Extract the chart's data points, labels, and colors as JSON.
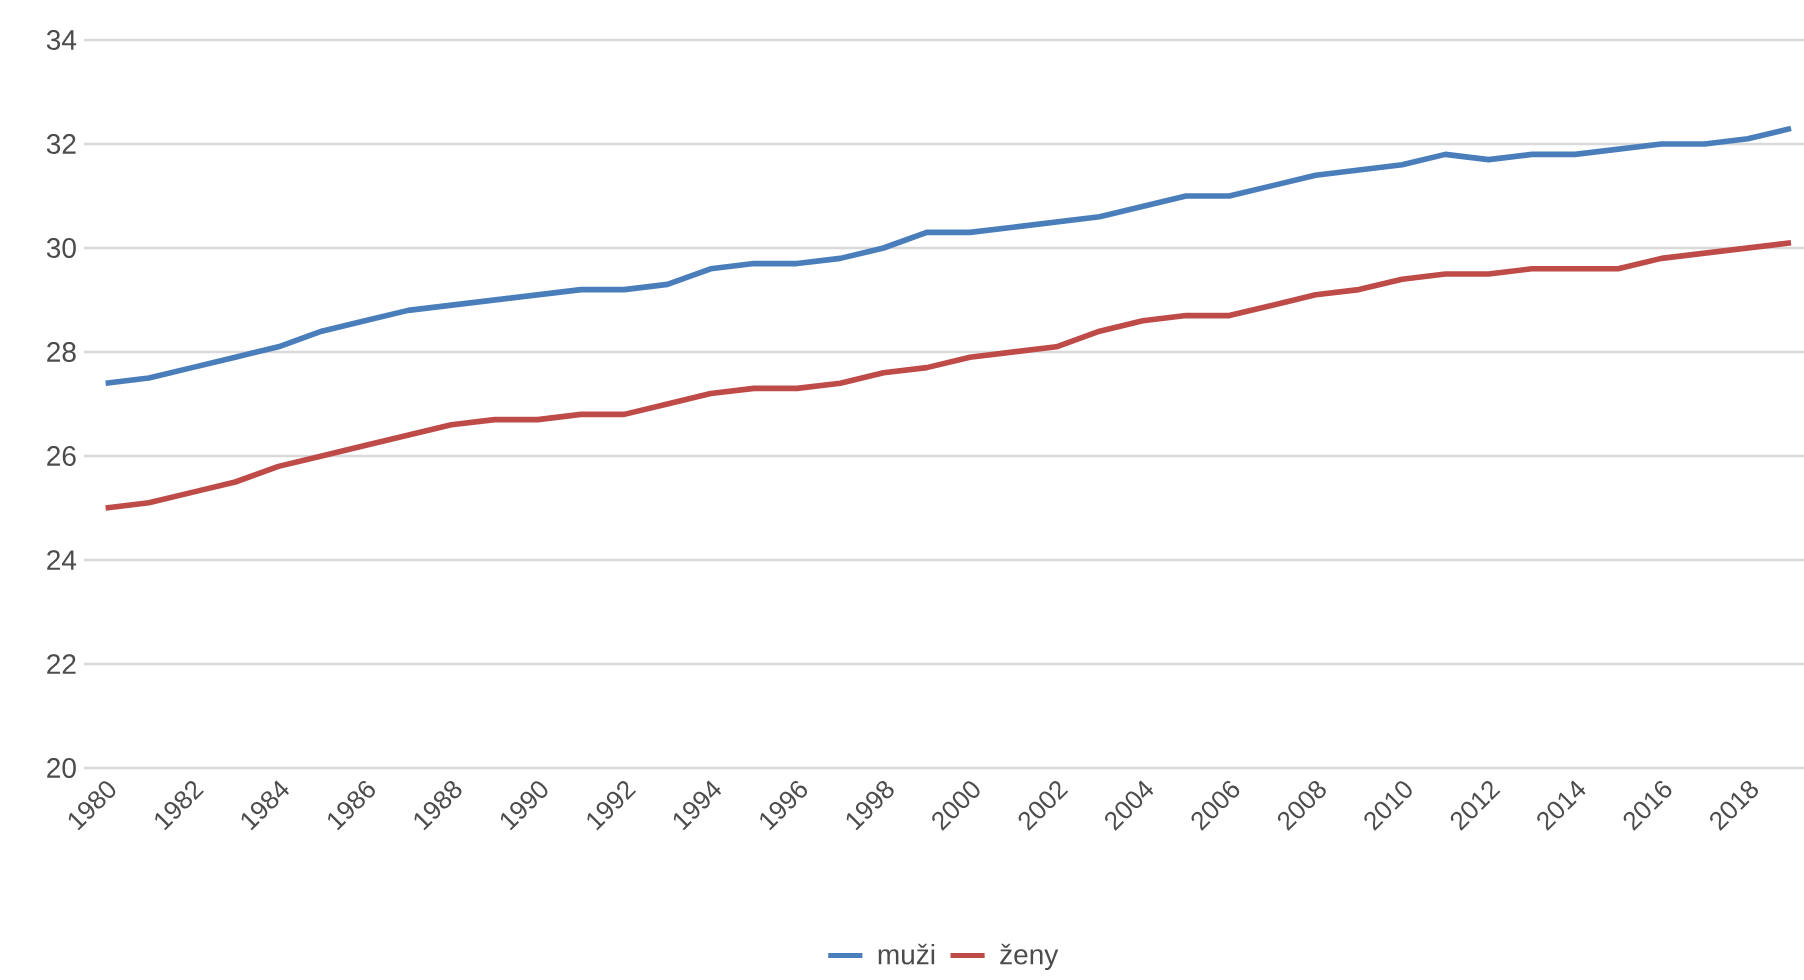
{
  "chart_data": {
    "type": "line",
    "categories": [
      "1980",
      null,
      "1982",
      null,
      "1984",
      null,
      "1986",
      null,
      "1988",
      null,
      "1990",
      null,
      "1992",
      null,
      "1994",
      null,
      "1996",
      null,
      "1998",
      null,
      "2000",
      null,
      "2002",
      null,
      "2004",
      null,
      "2006",
      null,
      "2008",
      null,
      "2010",
      null,
      "2012",
      null,
      "2014",
      null,
      "2016",
      null,
      "2018",
      null
    ],
    "series": [
      {
        "name": "muži",
        "color": "#4a7ebb",
        "values": [
          27.4,
          27.5,
          27.7,
          27.9,
          28.1,
          28.4,
          28.6,
          28.8,
          28.9,
          29.0,
          29.1,
          29.2,
          29.2,
          29.3,
          29.6,
          29.7,
          29.7,
          29.8,
          30.0,
          30.3,
          30.3,
          30.4,
          30.5,
          30.6,
          30.8,
          31.0,
          31.0,
          31.2,
          31.4,
          31.5,
          31.6,
          31.8,
          31.7,
          31.8,
          31.8,
          31.9,
          32.0,
          32.0,
          32.1,
          32.3
        ]
      },
      {
        "name": "ženy",
        "color": "#be4b48",
        "values": [
          25.0,
          25.1,
          25.3,
          25.5,
          25.8,
          26.0,
          26.2,
          26.4,
          26.6,
          26.7,
          26.7,
          26.8,
          26.8,
          27.0,
          27.2,
          27.3,
          27.3,
          27.4,
          27.6,
          27.7,
          27.9,
          28.0,
          28.1,
          28.4,
          28.6,
          28.7,
          28.7,
          28.9,
          29.1,
          29.2,
          29.4,
          29.5,
          29.5,
          29.6,
          29.6,
          29.6,
          29.8,
          29.9,
          30.0,
          30.1
        ]
      }
    ],
    "ylim": [
      20,
      34
    ],
    "yticks": [
      20,
      22,
      24,
      26,
      28,
      30,
      32,
      34
    ],
    "grid": "y",
    "legend": "bottom",
    "marker": "none",
    "line_style": "solid"
  }
}
